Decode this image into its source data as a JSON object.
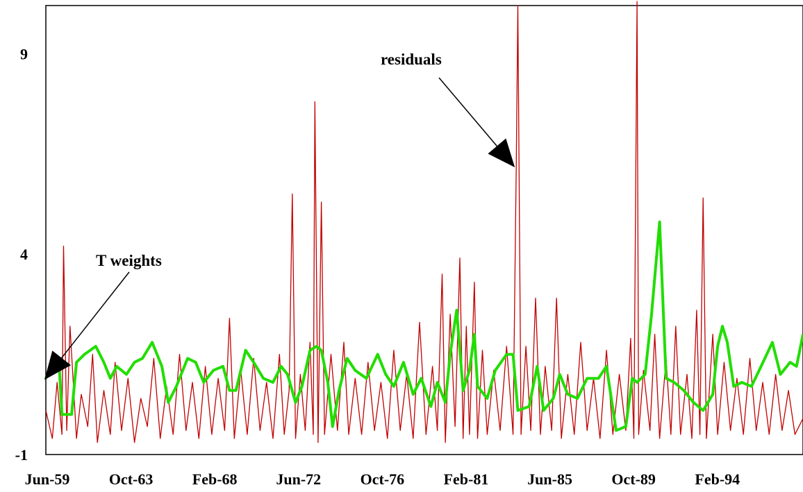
{
  "chart_data": {
    "type": "line",
    "title": "",
    "xlabel": "",
    "ylabel": "",
    "ylim": [
      -1,
      10.2
    ],
    "yticks": [
      {
        "value": 9,
        "label": "9"
      },
      {
        "value": 4,
        "label": "4"
      },
      {
        "value": -1,
        "label": "-1"
      }
    ],
    "xlim": [
      "1959-06",
      "1998-08"
    ],
    "xticks": [
      {
        "date": "1959-06",
        "label": "Jun-59"
      },
      {
        "date": "1963-10",
        "label": "Oct-63"
      },
      {
        "date": "1968-02",
        "label": "Feb-68"
      },
      {
        "date": "1972-06",
        "label": "Jun-72"
      },
      {
        "date": "1976-10",
        "label": "Oct-76"
      },
      {
        "date": "1981-02",
        "label": "Feb-81"
      },
      {
        "date": "1985-06",
        "label": "Jun-85"
      },
      {
        "date": "1989-10",
        "label": "Oct-89"
      },
      {
        "date": "1994-02",
        "label": "Feb-94"
      }
    ],
    "grid": false,
    "legend": "none",
    "series": [
      {
        "name": "residuals",
        "color": "#c00000",
        "points": [
          [
            "1959-06",
            0.1
          ],
          [
            "1959-10",
            -0.6
          ],
          [
            "1960-01",
            0.8
          ],
          [
            "1960-04",
            -0.5
          ],
          [
            "1960-05",
            4.2
          ],
          [
            "1960-07",
            -0.4
          ],
          [
            "1960-09",
            2.2
          ],
          [
            "1961-01",
            -0.6
          ],
          [
            "1961-04",
            0.5
          ],
          [
            "1961-08",
            -0.3
          ],
          [
            "1961-11",
            1.5
          ],
          [
            "1962-02",
            -0.7
          ],
          [
            "1962-06",
            0.6
          ],
          [
            "1962-10",
            -0.5
          ],
          [
            "1963-01",
            1.3
          ],
          [
            "1963-05",
            -0.4
          ],
          [
            "1963-09",
            0.9
          ],
          [
            "1964-01",
            -0.7
          ],
          [
            "1964-05",
            0.4
          ],
          [
            "1964-09",
            -0.3
          ],
          [
            "1965-01",
            1.4
          ],
          [
            "1965-05",
            -0.6
          ],
          [
            "1965-09",
            0.7
          ],
          [
            "1966-01",
            -0.5
          ],
          [
            "1966-05",
            1.5
          ],
          [
            "1966-09",
            -0.4
          ],
          [
            "1967-01",
            0.8
          ],
          [
            "1967-05",
            -0.6
          ],
          [
            "1967-09",
            1.2
          ],
          [
            "1968-01",
            -0.5
          ],
          [
            "1968-05",
            0.9
          ],
          [
            "1968-09",
            -0.4
          ],
          [
            "1968-12",
            2.4
          ],
          [
            "1969-03",
            -0.6
          ],
          [
            "1969-07",
            1.1
          ],
          [
            "1969-11",
            -0.5
          ],
          [
            "1970-03",
            1.4
          ],
          [
            "1970-07",
            -0.4
          ],
          [
            "1970-11",
            0.8
          ],
          [
            "1971-03",
            -0.6
          ],
          [
            "1971-07",
            1.5
          ],
          [
            "1971-10",
            -0.5
          ],
          [
            "1972-01",
            0.6
          ],
          [
            "1972-03",
            5.5
          ],
          [
            "1972-05",
            -0.6
          ],
          [
            "1972-08",
            1.0
          ],
          [
            "1972-11",
            -0.4
          ],
          [
            "1973-02",
            1.8
          ],
          [
            "1973-04",
            -0.5
          ],
          [
            "1973-05",
            7.8
          ],
          [
            "1973-07",
            -0.7
          ],
          [
            "1973-09",
            5.3
          ],
          [
            "1973-11",
            -0.5
          ],
          [
            "1974-03",
            1.5
          ],
          [
            "1974-07",
            -0.4
          ],
          [
            "1974-11",
            1.8
          ],
          [
            "1975-02",
            -0.5
          ],
          [
            "1975-06",
            0.9
          ],
          [
            "1975-10",
            -0.5
          ],
          [
            "1976-02",
            1.3
          ],
          [
            "1976-06",
            -0.4
          ],
          [
            "1976-10",
            0.8
          ],
          [
            "1977-02",
            -0.6
          ],
          [
            "1977-06",
            1.6
          ],
          [
            "1977-10",
            -0.4
          ],
          [
            "1978-02",
            1.0
          ],
          [
            "1978-06",
            -0.6
          ],
          [
            "1978-10",
            2.3
          ],
          [
            "1979-02",
            -0.5
          ],
          [
            "1979-06",
            1.2
          ],
          [
            "1979-09",
            -0.4
          ],
          [
            "1979-12",
            3.5
          ],
          [
            "1980-02",
            -0.7
          ],
          [
            "1980-05",
            2.5
          ],
          [
            "1980-08",
            -0.3
          ],
          [
            "1980-11",
            3.9
          ],
          [
            "1981-01",
            -0.6
          ],
          [
            "1981-03",
            2.2
          ],
          [
            "1981-05",
            -0.5
          ],
          [
            "1981-08",
            3.3
          ],
          [
            "1981-10",
            -0.6
          ],
          [
            "1982-01",
            1.6
          ],
          [
            "1982-04",
            -0.5
          ],
          [
            "1982-08",
            1.1
          ],
          [
            "1982-12",
            -0.4
          ],
          [
            "1983-04",
            1.7
          ],
          [
            "1983-08",
            -0.5
          ],
          [
            "1983-10",
            6.2
          ],
          [
            "1983-11",
            10.2
          ],
          [
            "1984-01",
            -0.5
          ],
          [
            "1984-04",
            1.7
          ],
          [
            "1984-07",
            -0.4
          ],
          [
            "1984-10",
            2.9
          ],
          [
            "1985-01",
            -0.5
          ],
          [
            "1985-04",
            1.2
          ],
          [
            "1985-08",
            -0.4
          ],
          [
            "1985-11",
            2.9
          ],
          [
            "1986-02",
            -0.6
          ],
          [
            "1986-06",
            1.0
          ],
          [
            "1986-10",
            -0.5
          ],
          [
            "1987-02",
            1.8
          ],
          [
            "1987-06",
            -0.4
          ],
          [
            "1987-10",
            0.9
          ],
          [
            "1988-02",
            -0.6
          ],
          [
            "1988-06",
            1.6
          ],
          [
            "1988-10",
            -0.5
          ],
          [
            "1989-02",
            1.0
          ],
          [
            "1989-06",
            -0.4
          ],
          [
            "1989-09",
            1.9
          ],
          [
            "1989-11",
            -0.6
          ],
          [
            "1990-01",
            10.3
          ],
          [
            "1990-02",
            -0.5
          ],
          [
            "1990-05",
            1.1
          ],
          [
            "1990-09",
            -0.4
          ],
          [
            "1990-12",
            2.0
          ],
          [
            "1991-03",
            -0.6
          ],
          [
            "1991-07",
            1.4
          ],
          [
            "1991-10",
            -0.5
          ],
          [
            "1992-01",
            2.2
          ],
          [
            "1992-04",
            -0.5
          ],
          [
            "1992-08",
            1.0
          ],
          [
            "1992-11",
            -0.6
          ],
          [
            "1993-02",
            2.6
          ],
          [
            "1993-04",
            -0.5
          ],
          [
            "1993-06",
            5.4
          ],
          [
            "1993-08",
            -0.6
          ],
          [
            "1993-12",
            2.0
          ],
          [
            "1994-03",
            -0.5
          ],
          [
            "1994-07",
            1.3
          ],
          [
            "1994-11",
            -0.4
          ],
          [
            "1995-03",
            0.9
          ],
          [
            "1995-07",
            -0.5
          ],
          [
            "1995-11",
            1.4
          ],
          [
            "1996-03",
            -0.4
          ],
          [
            "1996-07",
            0.8
          ],
          [
            "1996-11",
            -0.5
          ],
          [
            "1997-03",
            1.0
          ],
          [
            "1997-07",
            -0.4
          ],
          [
            "1997-11",
            0.6
          ],
          [
            "1998-03",
            -0.5
          ],
          [
            "1998-08",
            -0.1
          ]
        ]
      },
      {
        "name": "T weights",
        "color": "#22dd00",
        "points": [
          [
            "1959-06",
            0.9
          ],
          [
            "1959-10",
            1.3
          ],
          [
            "1960-02",
            1.4
          ],
          [
            "1960-04",
            0.0
          ],
          [
            "1960-10",
            0.0
          ],
          [
            "1961-01",
            1.3
          ],
          [
            "1961-06",
            1.5
          ],
          [
            "1962-01",
            1.7
          ],
          [
            "1962-06",
            1.3
          ],
          [
            "1962-10",
            0.9
          ],
          [
            "1963-02",
            1.2
          ],
          [
            "1963-08",
            1.0
          ],
          [
            "1964-01",
            1.3
          ],
          [
            "1964-06",
            1.4
          ],
          [
            "1964-12",
            1.8
          ],
          [
            "1965-06",
            1.2
          ],
          [
            "1965-10",
            0.3
          ],
          [
            "1966-03",
            0.7
          ],
          [
            "1966-10",
            1.4
          ],
          [
            "1967-03",
            1.3
          ],
          [
            "1967-08",
            0.8
          ],
          [
            "1968-02",
            1.1
          ],
          [
            "1968-08",
            1.2
          ],
          [
            "1968-12",
            0.6
          ],
          [
            "1969-04",
            0.6
          ],
          [
            "1969-10",
            1.6
          ],
          [
            "1970-03",
            1.3
          ],
          [
            "1970-09",
            0.9
          ],
          [
            "1971-03",
            0.8
          ],
          [
            "1971-08",
            1.2
          ],
          [
            "1971-12",
            1.0
          ],
          [
            "1972-05",
            0.3
          ],
          [
            "1972-09",
            0.7
          ],
          [
            "1973-02",
            1.6
          ],
          [
            "1973-06",
            1.7
          ],
          [
            "1973-09",
            1.6
          ],
          [
            "1974-01",
            0.8
          ],
          [
            "1974-04",
            -0.3
          ],
          [
            "1974-08",
            0.6
          ],
          [
            "1975-01",
            1.4
          ],
          [
            "1975-06",
            1.1
          ],
          [
            "1976-01",
            0.9
          ],
          [
            "1976-08",
            1.5
          ],
          [
            "1977-01",
            1.0
          ],
          [
            "1977-06",
            0.7
          ],
          [
            "1977-12",
            1.3
          ],
          [
            "1978-06",
            0.5
          ],
          [
            "1978-11",
            0.9
          ],
          [
            "1979-05",
            0.2
          ],
          [
            "1979-09",
            0.8
          ],
          [
            "1980-02",
            0.3
          ],
          [
            "1980-05",
            1.5
          ],
          [
            "1980-09",
            2.6
          ],
          [
            "1981-01",
            0.6
          ],
          [
            "1981-05",
            1.1
          ],
          [
            "1981-08",
            2.0
          ],
          [
            "1981-10",
            0.7
          ],
          [
            "1982-04",
            0.4
          ],
          [
            "1982-09",
            1.1
          ],
          [
            "1983-04",
            1.5
          ],
          [
            "1983-08",
            1.5
          ],
          [
            "1983-11",
            0.1
          ],
          [
            "1984-06",
            0.2
          ],
          [
            "1984-11",
            1.2
          ],
          [
            "1985-03",
            0.1
          ],
          [
            "1985-09",
            0.4
          ],
          [
            "1986-01",
            1.0
          ],
          [
            "1986-06",
            0.5
          ],
          [
            "1986-12",
            0.4
          ],
          [
            "1987-06",
            0.9
          ],
          [
            "1988-01",
            0.9
          ],
          [
            "1988-06",
            1.2
          ],
          [
            "1988-12",
            -0.4
          ],
          [
            "1989-06",
            -0.3
          ],
          [
            "1989-10",
            0.9
          ],
          [
            "1990-01",
            0.8
          ],
          [
            "1990-06",
            1.0
          ],
          [
            "1990-10",
            2.5
          ],
          [
            "1991-01",
            3.9
          ],
          [
            "1991-03",
            4.8
          ],
          [
            "1991-07",
            0.9
          ],
          [
            "1991-12",
            0.8
          ],
          [
            "1992-06",
            0.6
          ],
          [
            "1992-12",
            0.3
          ],
          [
            "1993-06",
            0.1
          ],
          [
            "1993-12",
            0.5
          ],
          [
            "1994-03",
            1.7
          ],
          [
            "1994-06",
            2.2
          ],
          [
            "1994-09",
            1.8
          ],
          [
            "1995-01",
            0.7
          ],
          [
            "1995-06",
            0.8
          ],
          [
            "1995-12",
            0.7
          ],
          [
            "1996-06",
            1.2
          ],
          [
            "1997-01",
            1.8
          ],
          [
            "1997-06",
            1.0
          ],
          [
            "1997-12",
            1.3
          ],
          [
            "1998-04",
            1.2
          ],
          [
            "1998-08",
            2.0
          ]
        ]
      }
    ],
    "annotations": [
      {
        "text": "residuals",
        "target_series": "residuals",
        "target_date": "1983-10"
      },
      {
        "text": "T weights",
        "target_series": "T weights",
        "target_date": "1962-05"
      }
    ]
  }
}
